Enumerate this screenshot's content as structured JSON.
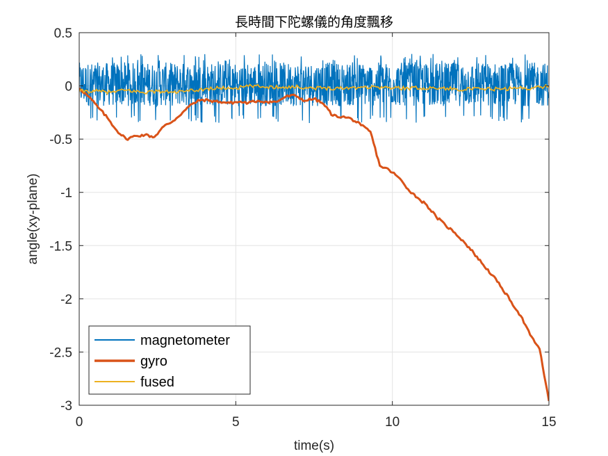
{
  "chart_data": {
    "type": "line",
    "title": "長時間下陀螺儀的角度飄移",
    "xlabel": "time(s)",
    "ylabel": "angle(xy-plane)",
    "xlim": [
      0,
      15
    ],
    "ylim": [
      -3,
      0.5
    ],
    "x_ticks": [
      0,
      5,
      10,
      15
    ],
    "y_ticks": [
      0.5,
      0,
      -0.5,
      -1,
      -1.5,
      -2,
      -2.5,
      -3
    ],
    "x_tick_labels": [
      "0",
      "5",
      "10",
      "15"
    ],
    "y_tick_labels": [
      "0.5",
      "0",
      "-0.5",
      "-1",
      "-1.5",
      "-2",
      "-2.5",
      "-3"
    ],
    "grid": true,
    "legend_position": "bottom-left",
    "series": [
      {
        "name": "magnetometer",
        "color": "#0072BD",
        "noise": {
          "center": -0.02,
          "band_low": -0.19,
          "band_high": 0.22,
          "spike_low": -0.35,
          "spike_high": 0.3,
          "samples_per_second": 100
        }
      },
      {
        "name": "gyro",
        "color": "#D95319",
        "points": [
          [
            0,
            -0.02
          ],
          [
            0.3,
            -0.1
          ],
          [
            0.6,
            -0.2
          ],
          [
            0.9,
            -0.3
          ],
          [
            1.2,
            -0.42
          ],
          [
            1.5,
            -0.5
          ],
          [
            1.8,
            -0.47
          ],
          [
            2.1,
            -0.46
          ],
          [
            2.4,
            -0.48
          ],
          [
            2.7,
            -0.38
          ],
          [
            3.0,
            -0.33
          ],
          [
            3.3,
            -0.25
          ],
          [
            3.6,
            -0.17
          ],
          [
            3.9,
            -0.13
          ],
          [
            4.2,
            -0.14
          ],
          [
            4.5,
            -0.15
          ],
          [
            4.8,
            -0.16
          ],
          [
            5.1,
            -0.15
          ],
          [
            5.4,
            -0.16
          ],
          [
            5.7,
            -0.14
          ],
          [
            6.0,
            -0.15
          ],
          [
            6.3,
            -0.15
          ],
          [
            6.6,
            -0.1
          ],
          [
            6.9,
            -0.09
          ],
          [
            7.2,
            -0.14
          ],
          [
            7.5,
            -0.12
          ],
          [
            7.8,
            -0.17
          ],
          [
            8.1,
            -0.28
          ],
          [
            8.4,
            -0.29
          ],
          [
            8.7,
            -0.31
          ],
          [
            9.0,
            -0.37
          ],
          [
            9.3,
            -0.43
          ],
          [
            9.6,
            -0.75
          ],
          [
            9.9,
            -0.79
          ],
          [
            10.2,
            -0.86
          ],
          [
            10.5,
            -0.97
          ],
          [
            10.8,
            -1.05
          ],
          [
            11.1,
            -1.12
          ],
          [
            11.4,
            -1.23
          ],
          [
            11.7,
            -1.31
          ],
          [
            12.0,
            -1.38
          ],
          [
            12.3,
            -1.47
          ],
          [
            12.6,
            -1.57
          ],
          [
            12.9,
            -1.68
          ],
          [
            13.2,
            -1.78
          ],
          [
            13.5,
            -1.9
          ],
          [
            13.8,
            -2.03
          ],
          [
            14.1,
            -2.16
          ],
          [
            14.4,
            -2.34
          ],
          [
            14.7,
            -2.47
          ],
          [
            15.0,
            -2.96
          ]
        ]
      },
      {
        "name": "fused",
        "color": "#EDB120",
        "points": [
          [
            0,
            -0.05
          ],
          [
            0.5,
            -0.05
          ],
          [
            1,
            -0.06
          ],
          [
            1.5,
            -0.04
          ],
          [
            2,
            -0.06
          ],
          [
            2.5,
            -0.05
          ],
          [
            3,
            -0.06
          ],
          [
            3.5,
            -0.05
          ],
          [
            4,
            -0.03
          ],
          [
            4.5,
            -0.02
          ],
          [
            5,
            -0.02
          ],
          [
            5.5,
            0
          ],
          [
            6,
            -0.01
          ],
          [
            6.5,
            -0.01
          ],
          [
            7,
            -0.01
          ],
          [
            7.5,
            -0.02
          ],
          [
            8,
            -0.02
          ],
          [
            8.5,
            -0.02
          ],
          [
            9,
            -0.01
          ],
          [
            9.5,
            -0.01
          ],
          [
            10,
            -0.02
          ],
          [
            10.5,
            -0.02
          ],
          [
            11,
            -0.02
          ],
          [
            11.5,
            -0.02
          ],
          [
            12,
            -0.03
          ],
          [
            12.5,
            -0.03
          ],
          [
            13,
            -0.03
          ],
          [
            13.5,
            -0.03
          ],
          [
            14,
            -0.02
          ],
          [
            14.5,
            -0.02
          ],
          [
            15,
            0
          ]
        ]
      }
    ]
  }
}
